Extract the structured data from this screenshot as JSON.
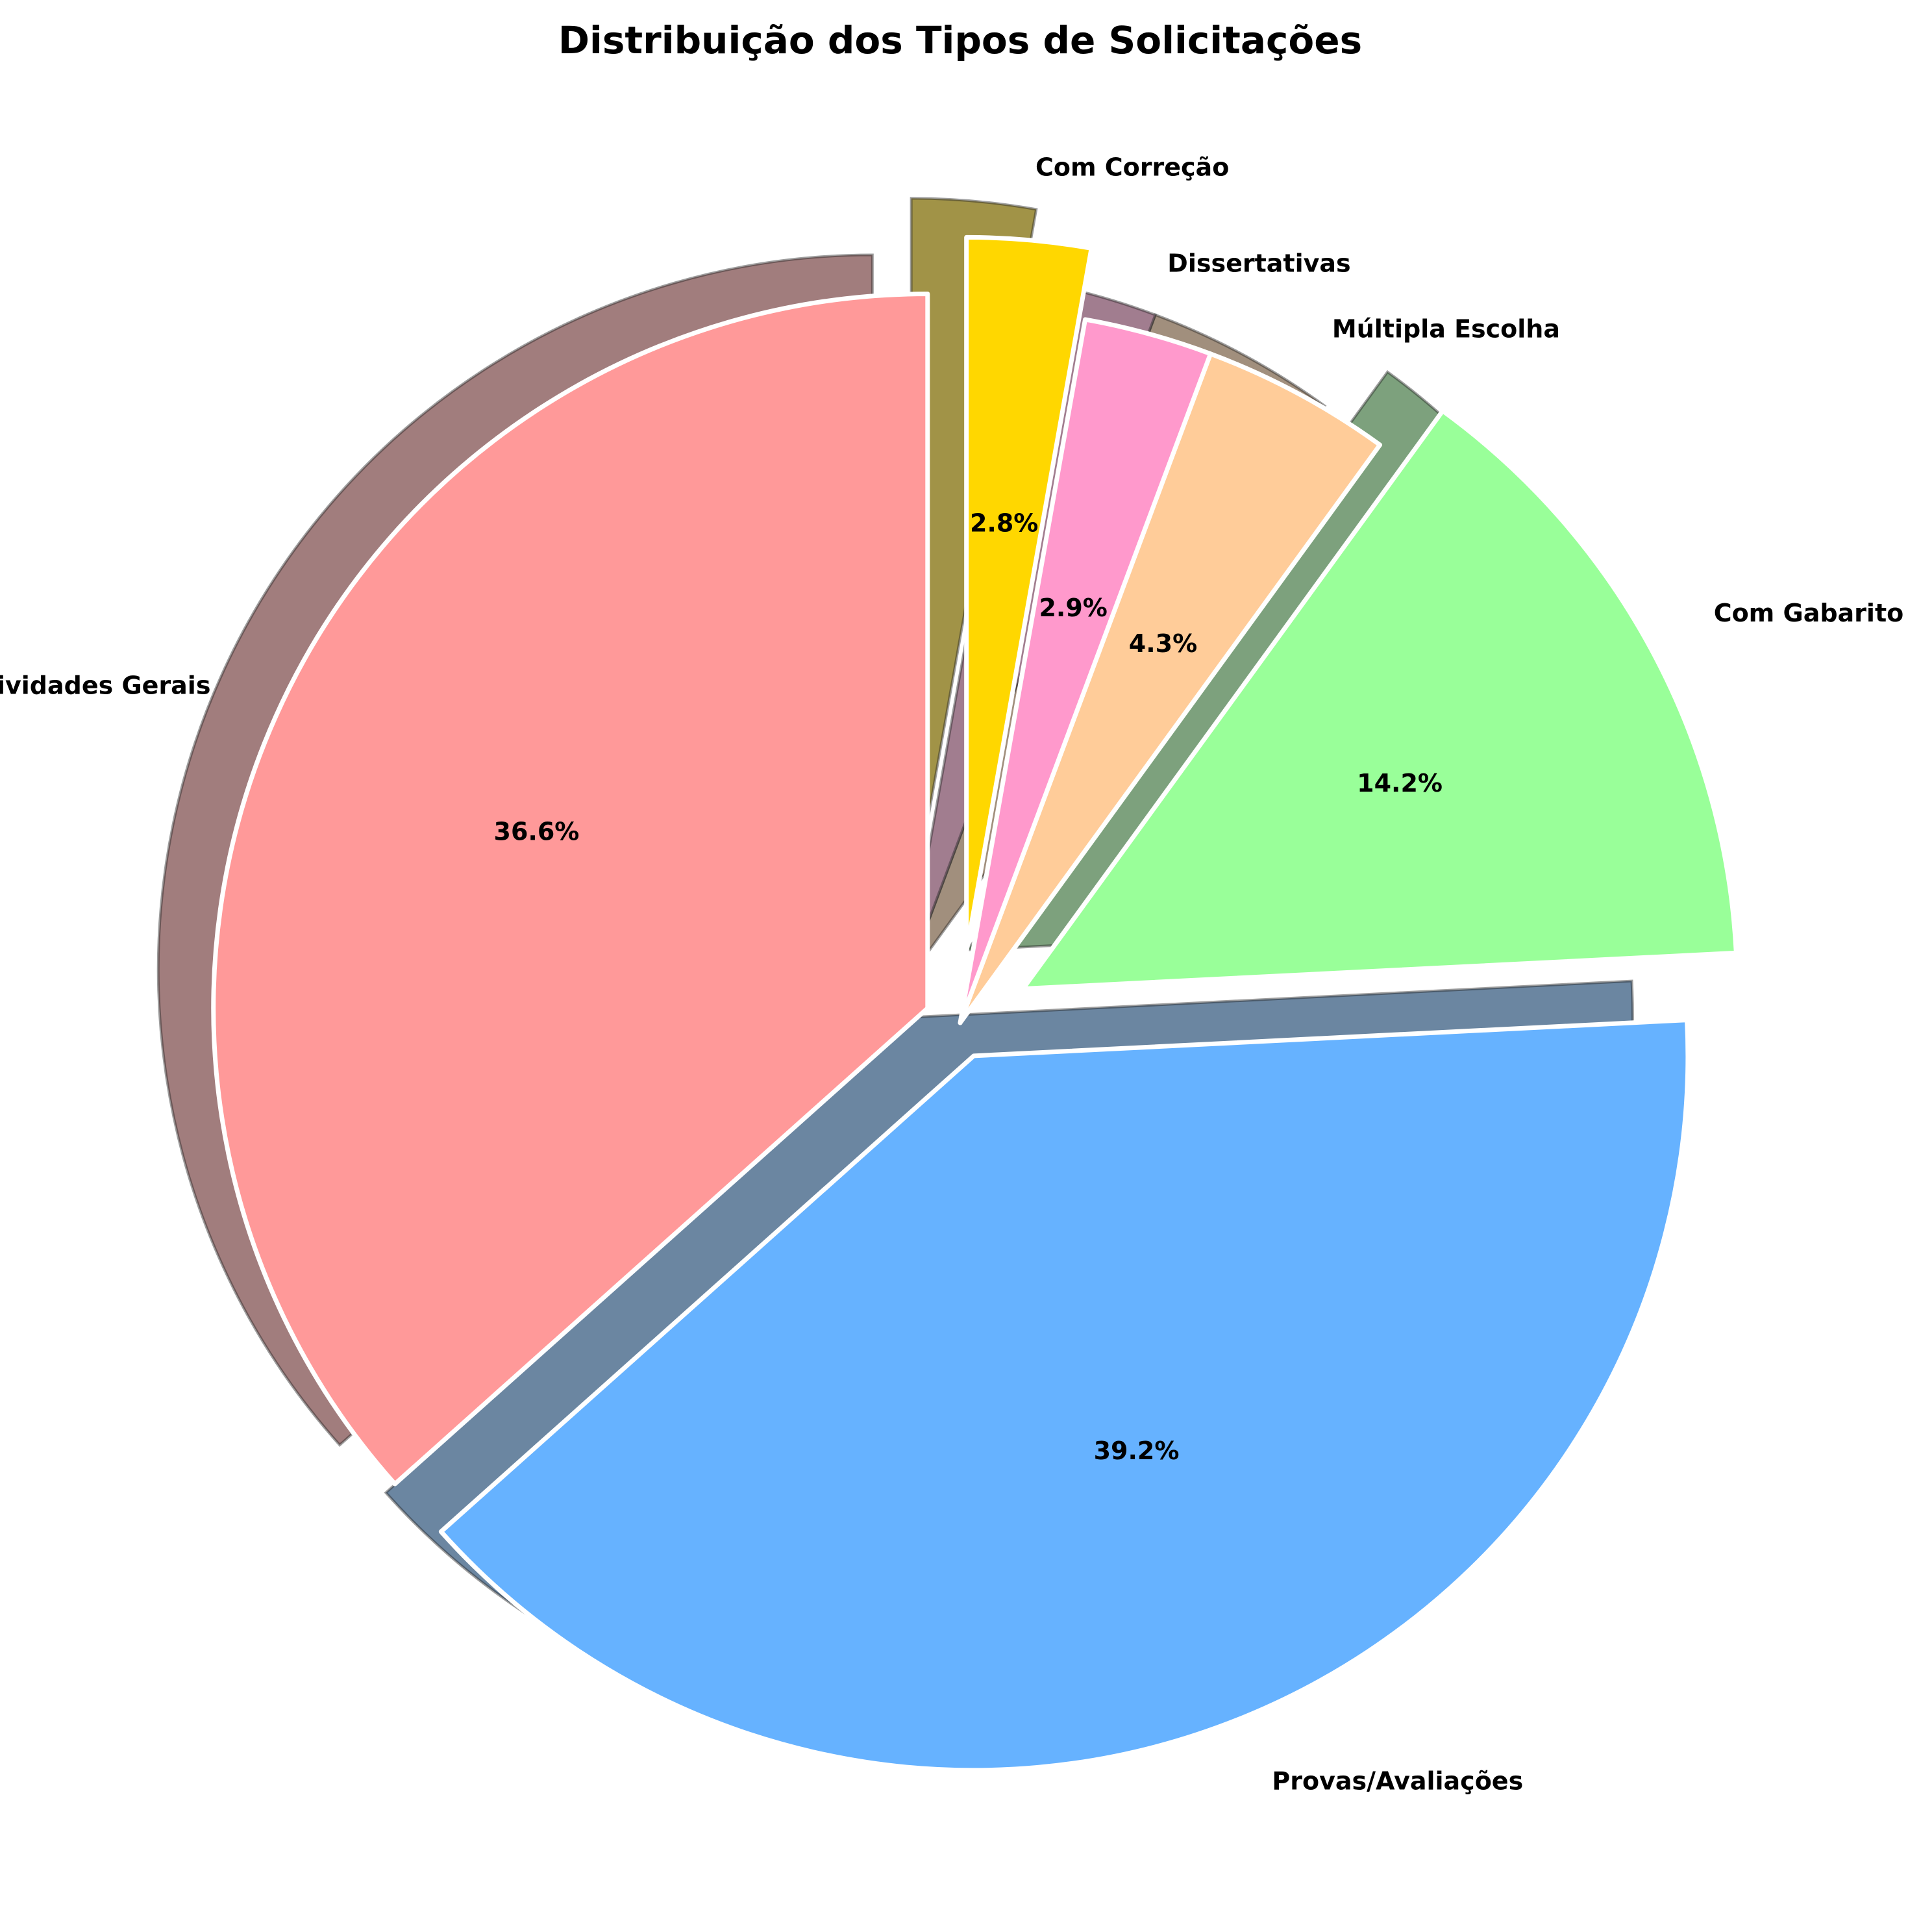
{
  "chart_data": {
    "type": "pie",
    "title": "Distribuição dos Tipos de Solicitações",
    "labels": [
      "Atividades Gerais",
      "Provas/Avaliações",
      "Com Gabarito",
      "Múltipla Escolha",
      "Dissertativas",
      "Com Correção"
    ],
    "values": [
      36.6,
      39.2,
      14.2,
      4.3,
      2.9,
      2.8
    ],
    "percent_labels": [
      "36.6%",
      "39.2%",
      "14.2%",
      "4.3%",
      "2.9%",
      "2.8%"
    ],
    "colors": [
      "#FF9999",
      "#66B2FF",
      "#99FF99",
      "#FFCC99",
      "#FF99CC",
      "#FFD700"
    ],
    "exploded": [
      0.05,
      0.05,
      0.1,
      0.0,
      0.0,
      0.1
    ],
    "start_angle_deg": 90,
    "direction": "counterclockwise",
    "shadow": true
  }
}
